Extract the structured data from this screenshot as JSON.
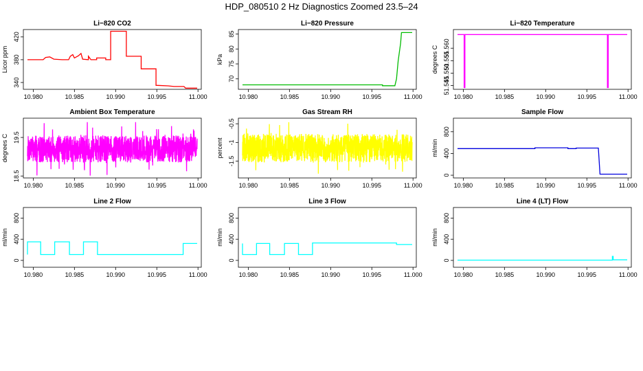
{
  "page": {
    "title": "HDP_080510  2 Hz Diagnostics Zoomed 23.5–24"
  },
  "chart_data": [
    {
      "type": "line",
      "title": "Li−820 CO2",
      "ylabel": "Licor ppm",
      "color": "#ff0000",
      "xlim": [
        10.9788,
        11.0004
      ],
      "ylim": [
        328,
        433
      ],
      "xticks": [
        "10.980",
        "10.985",
        "10.990",
        "10.995",
        "11.000"
      ],
      "xtick_values": [
        10.98,
        10.985,
        10.99,
        10.995,
        11.0
      ],
      "yticks": [
        "340",
        "380",
        "420"
      ],
      "ytick_values": [
        340,
        380,
        420
      ],
      "series": [
        {
          "name": "CO2",
          "values": [
            [
              10.9793,
              380
            ],
            [
              10.9812,
              380
            ],
            [
              10.9815,
              384
            ],
            [
              10.982,
              385
            ],
            [
              10.9825,
              381
            ],
            [
              10.9835,
              380
            ],
            [
              10.9843,
              380
            ],
            [
              10.9845,
              386
            ],
            [
              10.9848,
              389
            ],
            [
              10.985,
              383
            ],
            [
              10.9855,
              387
            ],
            [
              10.9858,
              391
            ],
            [
              10.986,
              381
            ],
            [
              10.9867,
              380
            ],
            [
              10.9867,
              386
            ],
            [
              10.987,
              380
            ],
            [
              10.9877,
              380
            ],
            [
              10.9877,
              383
            ],
            [
              10.9888,
              383
            ],
            [
              10.9888,
              380
            ],
            [
              10.9894,
              380
            ],
            [
              10.9894,
              430
            ],
            [
              10.9913,
              430
            ],
            [
              10.9913,
              386
            ],
            [
              10.9931,
              386
            ],
            [
              10.9931,
              364
            ],
            [
              10.9949,
              364
            ],
            [
              10.9949,
              335
            ],
            [
              10.9964,
              334
            ],
            [
              10.9971,
              333
            ],
            [
              10.9983,
              333
            ],
            [
              10.9985,
              330
            ],
            [
              10.9999,
              330
            ]
          ]
        }
      ]
    },
    {
      "type": "line",
      "title": "Li−820 Pressure",
      "ylabel": "kPa",
      "color": "#00bb00",
      "xlim": [
        10.9788,
        11.0004
      ],
      "ylim": [
        66.5,
        86.5
      ],
      "xticks": [
        "10.980",
        "10.985",
        "10.990",
        "10.995",
        "11.000"
      ],
      "xtick_values": [
        10.98,
        10.985,
        10.99,
        10.995,
        11.0
      ],
      "yticks": [
        "70",
        "75",
        "80",
        "85"
      ],
      "ytick_values": [
        70,
        75,
        80,
        85
      ],
      "series": [
        {
          "name": "Pressure",
          "values": [
            [
              10.9793,
              68
            ],
            [
              10.9963,
              68
            ],
            [
              10.9963,
              67.7
            ],
            [
              10.9978,
              67.7
            ],
            [
              10.998,
              70
            ],
            [
              10.9982,
              76
            ],
            [
              10.9985,
              82
            ],
            [
              10.9986,
              85.5
            ],
            [
              10.9999,
              85.5
            ]
          ]
        }
      ]
    },
    {
      "type": "line",
      "title": "Li−820 Temperature",
      "ylabel": "degrees C",
      "color": "#ff00ff",
      "xlim": [
        10.9788,
        11.0004
      ],
      "ylim": [
        51.5435,
        51.5675
      ],
      "xticks": [
        "10.980",
        "10.985",
        "10.990",
        "10.995",
        "11.000"
      ],
      "xtick_values": [
        10.98,
        10.985,
        10.99,
        10.995,
        11.0
      ],
      "yticks": [
        "51.545",
        "51.550",
        "51.555",
        "51.560"
      ],
      "ytick_values": [
        51.545,
        51.55,
        51.555,
        51.56
      ],
      "series": [
        {
          "name": "Temperature",
          "values": [
            [
              10.9793,
              51.5655
            ],
            [
              10.9801,
              51.5655
            ],
            [
              10.9801,
              51.5442
            ],
            [
              10.9802,
              51.5442
            ],
            [
              10.9802,
              51.5655
            ],
            [
              10.9975,
              51.5655
            ],
            [
              10.9975,
              51.5442
            ],
            [
              10.9976,
              51.5442
            ],
            [
              10.9976,
              51.5655
            ],
            [
              10.9999,
              51.5655
            ]
          ]
        }
      ]
    },
    {
      "type": "line",
      "title": "Ambient Box Temperature",
      "ylabel": "degrees C",
      "color": "#ff00ff",
      "xlim": [
        10.9788,
        11.0004
      ],
      "ylim": [
        18.45,
        20.0
      ],
      "xticks": [
        "10.980",
        "10.985",
        "10.990",
        "10.995",
        "11.000"
      ],
      "xtick_values": [
        10.98,
        10.985,
        10.99,
        10.995,
        11.0
      ],
      "yticks": [
        "18.5",
        "19.5"
      ],
      "ytick_values": [
        18.5,
        19.5
      ],
      "series": [
        {
          "name": "Ambient",
          "noise": {
            "x0": 10.9793,
            "x1": 10.9999,
            "n": 1200,
            "center": 19.2,
            "amp": 0.35,
            "spike": 0.7,
            "seed": 7
          }
        }
      ]
    },
    {
      "type": "line",
      "title": "Gas Stream RH",
      "ylabel": "percent",
      "color": "#ffff00",
      "xlim": [
        10.9788,
        11.0004
      ],
      "ylim": [
        -1.95,
        -0.35
      ],
      "xticks": [
        "10.980",
        "10.985",
        "10.990",
        "10.995",
        "11.000"
      ],
      "xtick_values": [
        10.98,
        10.985,
        10.99,
        10.995,
        11.0
      ],
      "yticks": [
        "-1.5",
        "-1",
        "-0.5"
      ],
      "ytick_values": [
        -1.5,
        -1.0,
        -0.5
      ],
      "series": [
        {
          "name": "RH",
          "noise": {
            "x0": 10.9793,
            "x1": 10.9999,
            "n": 1200,
            "center": -1.15,
            "amp": 0.38,
            "spike": 0.7,
            "seed": 13
          }
        }
      ]
    },
    {
      "type": "line",
      "title": "Sample Flow",
      "ylabel": "ml/min",
      "color": "#0000dd",
      "xlim": [
        10.9788,
        11.0004
      ],
      "ylim": [
        -50,
        1050
      ],
      "xticks": [
        "10.980",
        "10.985",
        "10.990",
        "10.995",
        "11.000"
      ],
      "xtick_values": [
        10.98,
        10.985,
        10.99,
        10.995,
        11.0
      ],
      "yticks": [
        "0",
        "400",
        "800"
      ],
      "ytick_values": [
        0,
        400,
        800
      ],
      "series": [
        {
          "name": "Sample Flow",
          "values": [
            [
              10.9793,
              490
            ],
            [
              10.9887,
              490
            ],
            [
              10.9887,
              505
            ],
            [
              10.9927,
              505
            ],
            [
              10.9927,
              490
            ],
            [
              10.9937,
              490
            ],
            [
              10.9937,
              500
            ],
            [
              10.9964,
              500
            ],
            [
              10.9966,
              20
            ],
            [
              10.9999,
              20
            ]
          ]
        }
      ]
    },
    {
      "type": "line",
      "title": "Line 2 Flow",
      "ylabel": "ml/min",
      "color": "#00ffff",
      "xlim": [
        10.9788,
        11.0004
      ],
      "ylim": [
        -130,
        1000
      ],
      "xticks": [
        "10.980",
        "10.985",
        "10.990",
        "10.995",
        "11.000"
      ],
      "xtick_values": [
        10.98,
        10.985,
        10.99,
        10.995,
        11.0
      ],
      "yticks": [
        "0",
        "400",
        "800"
      ],
      "ytick_values": [
        0,
        400,
        800
      ],
      "series": [
        {
          "name": "Line 2",
          "values": [
            [
              10.9793,
              110
            ],
            [
              10.9793,
              350
            ],
            [
              10.9809,
              350
            ],
            [
              10.9809,
              110
            ],
            [
              10.9826,
              110
            ],
            [
              10.9826,
              350
            ],
            [
              10.9844,
              350
            ],
            [
              10.9844,
              110
            ],
            [
              10.9861,
              110
            ],
            [
              10.9861,
              350
            ],
            [
              10.9878,
              350
            ],
            [
              10.9878,
              110
            ],
            [
              10.9982,
              110
            ],
            [
              10.9982,
              320
            ],
            [
              10.9999,
              320
            ]
          ]
        }
      ]
    },
    {
      "type": "line",
      "title": "Line 3 Flow",
      "ylabel": "ml/min",
      "color": "#00ffff",
      "xlim": [
        10.9788,
        11.0004
      ],
      "ylim": [
        -130,
        1000
      ],
      "xticks": [
        "10.980",
        "10.985",
        "10.990",
        "10.995",
        "11.000"
      ],
      "xtick_values": [
        10.98,
        10.985,
        10.99,
        10.995,
        11.0
      ],
      "yticks": [
        "0",
        "400",
        "800"
      ],
      "ytick_values": [
        0,
        400,
        800
      ],
      "series": [
        {
          "name": "Line 3",
          "values": [
            [
              10.9793,
              320
            ],
            [
              10.9793,
              110
            ],
            [
              10.981,
              110
            ],
            [
              10.981,
              320
            ],
            [
              10.9826,
              320
            ],
            [
              10.9826,
              110
            ],
            [
              10.9844,
              110
            ],
            [
              10.9844,
              320
            ],
            [
              10.9861,
              320
            ],
            [
              10.9861,
              110
            ],
            [
              10.9878,
              110
            ],
            [
              10.9878,
              330
            ],
            [
              10.998,
              330
            ],
            [
              10.998,
              300
            ],
            [
              10.9999,
              300
            ]
          ]
        }
      ]
    },
    {
      "type": "line",
      "title": "Line 4 (LT) Flow",
      "ylabel": "ml/min",
      "color": "#00ffff",
      "xlim": [
        10.9788,
        11.0004
      ],
      "ylim": [
        -130,
        1000
      ],
      "xticks": [
        "10.980",
        "10.985",
        "10.990",
        "10.995",
        "11.000"
      ],
      "xtick_values": [
        10.98,
        10.985,
        10.99,
        10.995,
        11.0
      ],
      "yticks": [
        "0",
        "400",
        "800"
      ],
      "ytick_values": [
        0,
        400,
        800
      ],
      "series": [
        {
          "name": "Line 4",
          "values": [
            [
              10.9793,
              5
            ],
            [
              10.9981,
              5
            ],
            [
              10.9981,
              75
            ],
            [
              10.9982,
              75
            ],
            [
              10.9982,
              10
            ],
            [
              10.9999,
              10
            ]
          ]
        }
      ]
    }
  ]
}
